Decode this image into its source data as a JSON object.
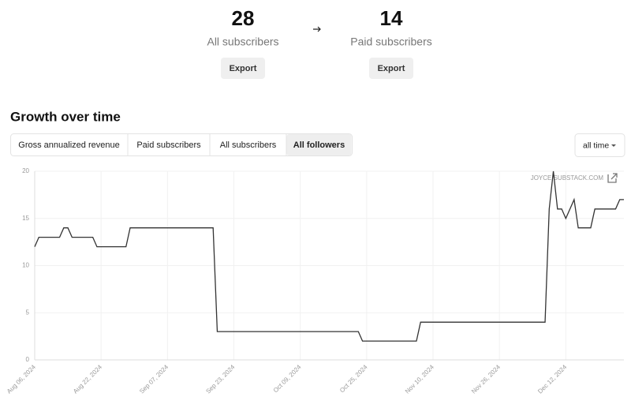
{
  "stats": [
    {
      "value": 28,
      "label": "All subscribers",
      "button": "Export"
    },
    {
      "value": 14,
      "label": "Paid subscribers",
      "button": "Export"
    }
  ],
  "section_title": "Growth over time",
  "tabs": [
    "Gross annualized revenue",
    "Paid subscribers",
    "All subscribers",
    "All followers"
  ],
  "active_tab": 3,
  "dropdown": "all time",
  "chart_data": {
    "type": "line",
    "watermark": "JOYCE.SUBSTACK.COM",
    "color": "#333333",
    "grid": true,
    "x": [
      "2024-08-06",
      "2024-08-07",
      "2024-08-12",
      "2024-08-13",
      "2024-08-14",
      "2024-08-15",
      "2024-08-20",
      "2024-08-21",
      "2024-08-28",
      "2024-08-29",
      "2024-09-18",
      "2024-09-19",
      "2024-10-23",
      "2024-10-24",
      "2024-11-06",
      "2024-11-07",
      "2024-12-07",
      "2024-12-08",
      "2024-12-09",
      "2024-12-10",
      "2024-12-11",
      "2024-12-12",
      "2024-12-14",
      "2024-12-15",
      "2024-12-18",
      "2024-12-19",
      "2024-12-24",
      "2024-12-25",
      "2024-12-26"
    ],
    "values": [
      12,
      13,
      13,
      14,
      14,
      13,
      13,
      12,
      12,
      14,
      14,
      3,
      3,
      2,
      2,
      4,
      4,
      16,
      20,
      16,
      16,
      15,
      17,
      14,
      14,
      16,
      16,
      17,
      17
    ],
    "xlim": [
      "2024-08-06",
      "2024-12-26"
    ],
    "xticks": [
      {
        "value": "2024-08-06",
        "label": "Aug 06, 2024"
      },
      {
        "value": "2024-08-22",
        "label": "Aug 22, 2024"
      },
      {
        "value": "2024-09-07",
        "label": "Sep 07, 2024"
      },
      {
        "value": "2024-09-23",
        "label": "Sep 23, 2024"
      },
      {
        "value": "2024-10-09",
        "label": "Oct 09, 2024"
      },
      {
        "value": "2024-10-25",
        "label": "Oct 25, 2024"
      },
      {
        "value": "2024-11-10",
        "label": "Nov 10, 2024"
      },
      {
        "value": "2024-11-26",
        "label": "Nov 26, 2024"
      },
      {
        "value": "2024-12-12",
        "label": "Dec 12, 2024"
      }
    ],
    "ylim": [
      0,
      20
    ],
    "yticks": [
      0,
      5,
      10,
      15,
      20
    ]
  }
}
